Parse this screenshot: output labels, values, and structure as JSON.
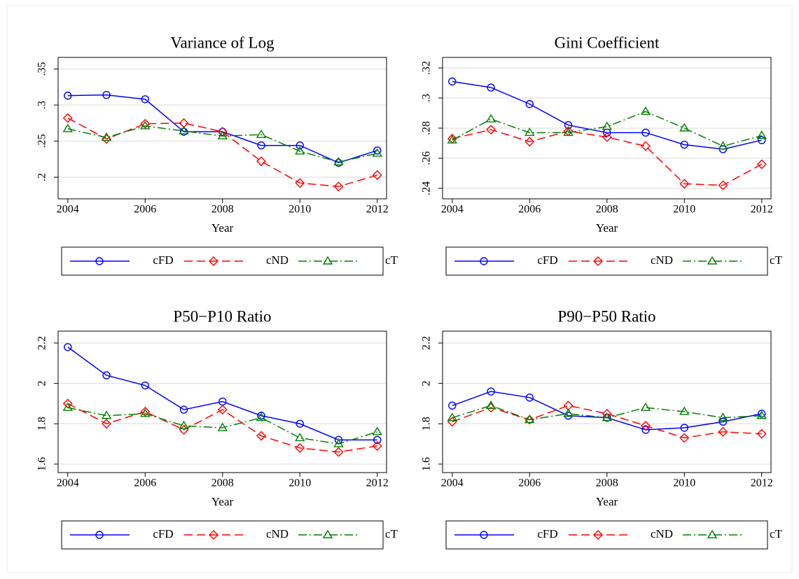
{
  "chart_data": [
    {
      "type": "line",
      "title": "Variance of Log",
      "xlabel": "Year",
      "x": [
        2004,
        2005,
        2006,
        2007,
        2008,
        2009,
        2010,
        2011,
        2012
      ],
      "series": [
        {
          "name": "cFD",
          "color": "#0000ff",
          "marker": "circle",
          "style": "solid",
          "values": [
            0.313,
            0.314,
            0.308,
            0.263,
            0.263,
            0.244,
            0.244,
            0.22,
            0.237
          ]
        },
        {
          "name": "cND",
          "color": "#ff0000",
          "marker": "diamond",
          "style": "dash",
          "values": [
            0.282,
            0.253,
            0.274,
            0.275,
            0.263,
            0.222,
            0.192,
            0.187,
            0.203
          ]
        },
        {
          "name": "cT",
          "color": "#008000",
          "marker": "triangle",
          "style": "dashdot",
          "values": [
            0.267,
            0.255,
            0.271,
            0.264,
            0.257,
            0.259,
            0.236,
            0.221,
            0.233
          ]
        }
      ],
      "xlim": [
        2003.75,
        2012.24
      ],
      "xticks": [
        2004,
        2006,
        2008,
        2010,
        2012
      ],
      "ylim": [
        0.17,
        0.366
      ],
      "yticks": [
        {
          "value": 0.2,
          "label": ".2"
        },
        {
          "value": 0.25,
          "label": ".25"
        },
        {
          "value": 0.3,
          "label": ".3"
        },
        {
          "value": 0.35,
          "label": ".35"
        }
      ],
      "grid": true
    },
    {
      "type": "line",
      "title": "Gini Coefficient",
      "xlabel": "Year",
      "x": [
        2004,
        2005,
        2006,
        2007,
        2008,
        2009,
        2010,
        2011,
        2012
      ],
      "series": [
        {
          "name": "cFD",
          "color": "#0000ff",
          "marker": "circle",
          "style": "solid",
          "values": [
            0.311,
            0.307,
            0.296,
            0.282,
            0.277,
            0.277,
            0.269,
            0.266,
            0.272
          ]
        },
        {
          "name": "cND",
          "color": "#ff0000",
          "marker": "diamond",
          "style": "dash",
          "values": [
            0.273,
            0.279,
            0.271,
            0.278,
            0.274,
            0.268,
            0.243,
            0.242,
            0.256
          ]
        },
        {
          "name": "cT",
          "color": "#008000",
          "marker": "triangle",
          "style": "dashdot",
          "values": [
            0.272,
            0.286,
            0.277,
            0.277,
            0.281,
            0.291,
            0.28,
            0.268,
            0.275
          ]
        }
      ],
      "xlim": [
        2003.75,
        2012.24
      ],
      "xticks": [
        2004,
        2006,
        2008,
        2010,
        2012
      ],
      "ylim": [
        0.233,
        0.327
      ],
      "yticks": [
        {
          "value": 0.24,
          "label": ".24"
        },
        {
          "value": 0.26,
          "label": ".26"
        },
        {
          "value": 0.28,
          "label": ".28"
        },
        {
          "value": 0.3,
          "label": ".3"
        },
        {
          "value": 0.32,
          "label": ".32"
        }
      ],
      "grid": true
    },
    {
      "type": "line",
      "title": "P50−P10 Ratio",
      "xlabel": "Year",
      "x": [
        2004,
        2005,
        2006,
        2007,
        2008,
        2009,
        2010,
        2011,
        2012
      ],
      "series": [
        {
          "name": "cFD",
          "color": "#0000ff",
          "marker": "circle",
          "style": "solid",
          "values": [
            2.18,
            2.04,
            1.99,
            1.87,
            1.91,
            1.84,
            1.8,
            1.72,
            1.72
          ]
        },
        {
          "name": "cND",
          "color": "#ff0000",
          "marker": "diamond",
          "style": "dash",
          "values": [
            1.9,
            1.8,
            1.86,
            1.77,
            1.87,
            1.74,
            1.68,
            1.66,
            1.69
          ]
        },
        {
          "name": "cT",
          "color": "#008000",
          "marker": "triangle",
          "style": "dashdot",
          "values": [
            1.88,
            1.84,
            1.85,
            1.79,
            1.78,
            1.83,
            1.73,
            1.7,
            1.76
          ]
        }
      ],
      "xlim": [
        2003.75,
        2012.24
      ],
      "xticks": [
        2004,
        2006,
        2008,
        2010,
        2012
      ],
      "ylim": [
        1.558,
        2.259
      ],
      "yticks": [
        1.6,
        1.8,
        2,
        2.2
      ],
      "grid": true
    },
    {
      "type": "line",
      "title": "P90−P50 Ratio",
      "xlabel": "Year",
      "x": [
        2004,
        2005,
        2006,
        2007,
        2008,
        2009,
        2010,
        2011,
        2012
      ],
      "series": [
        {
          "name": "cFD",
          "color": "#0000ff",
          "marker": "circle",
          "style": "solid",
          "values": [
            1.89,
            1.96,
            1.93,
            1.84,
            1.83,
            1.77,
            1.78,
            1.81,
            1.85
          ]
        },
        {
          "name": "cND",
          "color": "#ff0000",
          "marker": "diamond",
          "style": "dash",
          "values": [
            1.81,
            1.88,
            1.82,
            1.89,
            1.85,
            1.79,
            1.73,
            1.76,
            1.75
          ]
        },
        {
          "name": "cT",
          "color": "#008000",
          "marker": "triangle",
          "style": "dashdot",
          "values": [
            1.83,
            1.89,
            1.82,
            1.85,
            1.83,
            1.88,
            1.86,
            1.83,
            1.84
          ]
        }
      ],
      "xlim": [
        2003.75,
        2012.24
      ],
      "xticks": [
        2004,
        2006,
        2008,
        2010,
        2012
      ],
      "ylim": [
        1.558,
        2.259
      ],
      "yticks": [
        1.6,
        1.8,
        2,
        2.2
      ],
      "grid": true
    }
  ]
}
